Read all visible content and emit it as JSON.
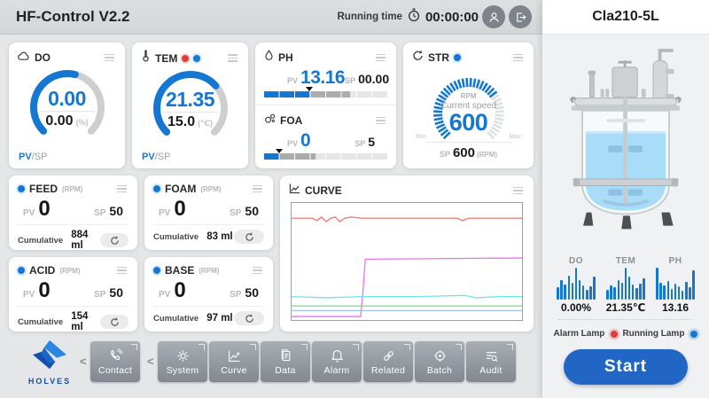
{
  "app": {
    "title": "HF-Control V2.2",
    "running_time_label": "Running time",
    "running_time": "00:00:00"
  },
  "device": {
    "name": "Cla210-5L"
  },
  "colors": {
    "accent_blue": "#1677d2",
    "alarm_red": "#e23d3d",
    "tick_gray": "#dde0e3"
  },
  "cards": {
    "do": {
      "label": "DO",
      "pv": "0.00",
      "sp": "0.00",
      "unit": "(%)",
      "pv_label": "PV",
      "sp_suffix": "/SP",
      "fraction": 0.55
    },
    "tem": {
      "label": "TEM",
      "pv": "21.35",
      "sp": "15.0",
      "unit": "(℃)",
      "pv_label": "PV",
      "sp_suffix": "/SP",
      "fraction": 0.68
    },
    "ph": {
      "label": "PH",
      "pv_label": "PV",
      "pv": "13.16",
      "sp_label": "SP",
      "sp": "00.00",
      "bar": {
        "blue": 37,
        "dark": 70,
        "marker": 37
      }
    },
    "foa": {
      "label": "FOA",
      "pv_label": "PV",
      "pv": "0",
      "sp_label": "SP",
      "sp": "5",
      "bar": {
        "blue": 12,
        "dark": 42,
        "marker": 12
      }
    },
    "str": {
      "label": "STR",
      "rpm_label": "RPM",
      "speed_label": "Current speed",
      "value": "600",
      "sp_label": "SP",
      "sp": "600",
      "sp_unit": "(RPM)",
      "min_label": "Min",
      "max_label": "Max",
      "fraction": 0.7
    }
  },
  "pumps": [
    {
      "label": "FEED",
      "unit": "(RPM)",
      "pv_label": "PV",
      "pv": "0",
      "sp_label": "SP",
      "sp": "50",
      "cumulative_label": "Cumulative",
      "cumulative": "884 ml"
    },
    {
      "label": "FOAM",
      "unit": "(RPM)",
      "pv_label": "PV",
      "pv": "0",
      "sp_label": "SP",
      "sp": "50",
      "cumulative_label": "Cumulative",
      "cumulative": "83 ml"
    },
    {
      "label": "ACID",
      "unit": "(RPM)",
      "pv_label": "PV",
      "pv": "0",
      "sp_label": "SP",
      "sp": "50",
      "cumulative_label": "Cumulative",
      "cumulative": "154 ml"
    },
    {
      "label": "BASE",
      "unit": "(RPM)",
      "pv_label": "PV",
      "pv": "0",
      "sp_label": "SP",
      "sp": "50",
      "cumulative_label": "Cumulative",
      "cumulative": "97 ml"
    }
  ],
  "chart_data": {
    "type": "line",
    "title": "CURVE",
    "xlabel": "",
    "ylabel": "",
    "grid": false,
    "series": [
      {
        "name": "red-series",
        "color": "#f2726e",
        "points": [
          [
            0,
            13
          ],
          [
            9,
            13
          ],
          [
            11,
            15
          ],
          [
            13,
            12
          ],
          [
            15,
            16
          ],
          [
            17,
            13
          ],
          [
            19,
            12
          ],
          [
            21,
            16
          ],
          [
            23,
            13
          ],
          [
            26,
            12
          ],
          [
            30,
            13
          ],
          [
            50,
            13
          ],
          [
            72,
            13
          ],
          [
            74,
            15
          ],
          [
            77,
            13
          ],
          [
            100,
            13
          ]
        ]
      },
      {
        "name": "magenta-series",
        "color": "#ee6ff0",
        "points": [
          [
            0,
            97
          ],
          [
            30,
            97
          ],
          [
            31,
            75
          ],
          [
            32,
            48
          ],
          [
            100,
            47
          ]
        ]
      },
      {
        "name": "cyan-series",
        "color": "#6fe3ee",
        "points": [
          [
            0,
            80
          ],
          [
            15,
            81
          ],
          [
            30,
            80
          ],
          [
            55,
            80
          ],
          [
            75,
            79
          ],
          [
            80,
            81
          ],
          [
            90,
            80
          ],
          [
            100,
            80
          ]
        ]
      },
      {
        "name": "green-series",
        "color": "#7fd98f",
        "points": [
          [
            0,
            88
          ],
          [
            100,
            88
          ]
        ]
      },
      {
        "name": "blue-series",
        "color": "#a3c6e8",
        "points": [
          [
            0,
            92
          ],
          [
            100,
            92
          ]
        ]
      }
    ]
  },
  "nav": {
    "logo_text": "HOLVES",
    "contact": {
      "label": "Contact"
    },
    "items": [
      {
        "label": "System"
      },
      {
        "label": "Curve"
      },
      {
        "label": "Data"
      },
      {
        "label": "Alarm"
      },
      {
        "label": "Related"
      },
      {
        "label": "Batch"
      },
      {
        "label": "Audit"
      }
    ]
  },
  "panel": {
    "indicators": [
      {
        "label": "DO",
        "value": "0.00%",
        "bars": [
          38,
          60,
          48,
          75,
          52,
          100,
          62,
          45,
          30,
          42,
          72
        ]
      },
      {
        "label": "TEM",
        "value": "21.35℃",
        "bars": [
          30,
          45,
          40,
          62,
          52,
          100,
          72,
          48,
          35,
          50,
          68
        ]
      },
      {
        "label": "PH",
        "value": "13.16",
        "bars": [
          100,
          52,
          45,
          58,
          32,
          50,
          42,
          28,
          55,
          38,
          92
        ]
      }
    ],
    "alarm_lamp_label": "Alarm Lamp",
    "running_lamp_label": "Running Lamp",
    "start_label": "Start"
  }
}
